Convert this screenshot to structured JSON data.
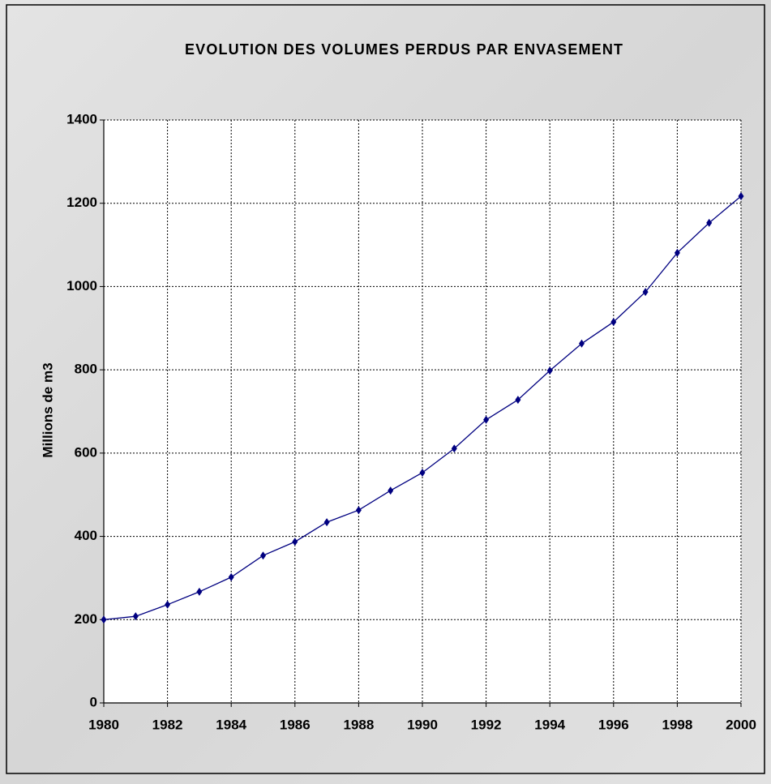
{
  "chart_data": {
    "type": "line",
    "title": "EVOLUTION DES VOLUMES PERDUS PAR ENVASEMENT",
    "y_label": "Millions de m3",
    "x": [
      1980,
      1981,
      1982,
      1983,
      1984,
      1985,
      1986,
      1987,
      1988,
      1989,
      1990,
      1991,
      1992,
      1993,
      1994,
      1995,
      1996,
      1997,
      1998,
      1999,
      2000
    ],
    "series": [
      {
        "name": "Volumes perdus",
        "color": "#000080",
        "values": [
          200,
          208,
          236,
          267,
          302,
          354,
          387,
          434,
          463,
          510,
          553,
          611,
          680,
          728,
          798,
          863,
          915,
          987,
          1081,
          1153,
          1217
        ]
      }
    ],
    "xlim": [
      1980,
      2000
    ],
    "xticks": [
      1980,
      1982,
      1984,
      1986,
      1988,
      1990,
      1992,
      1994,
      1996,
      1998,
      2000
    ],
    "ylim": [
      0,
      1400
    ],
    "yticks": [
      0,
      200,
      400,
      600,
      800,
      1000,
      1200,
      1400
    ],
    "grid": true
  }
}
